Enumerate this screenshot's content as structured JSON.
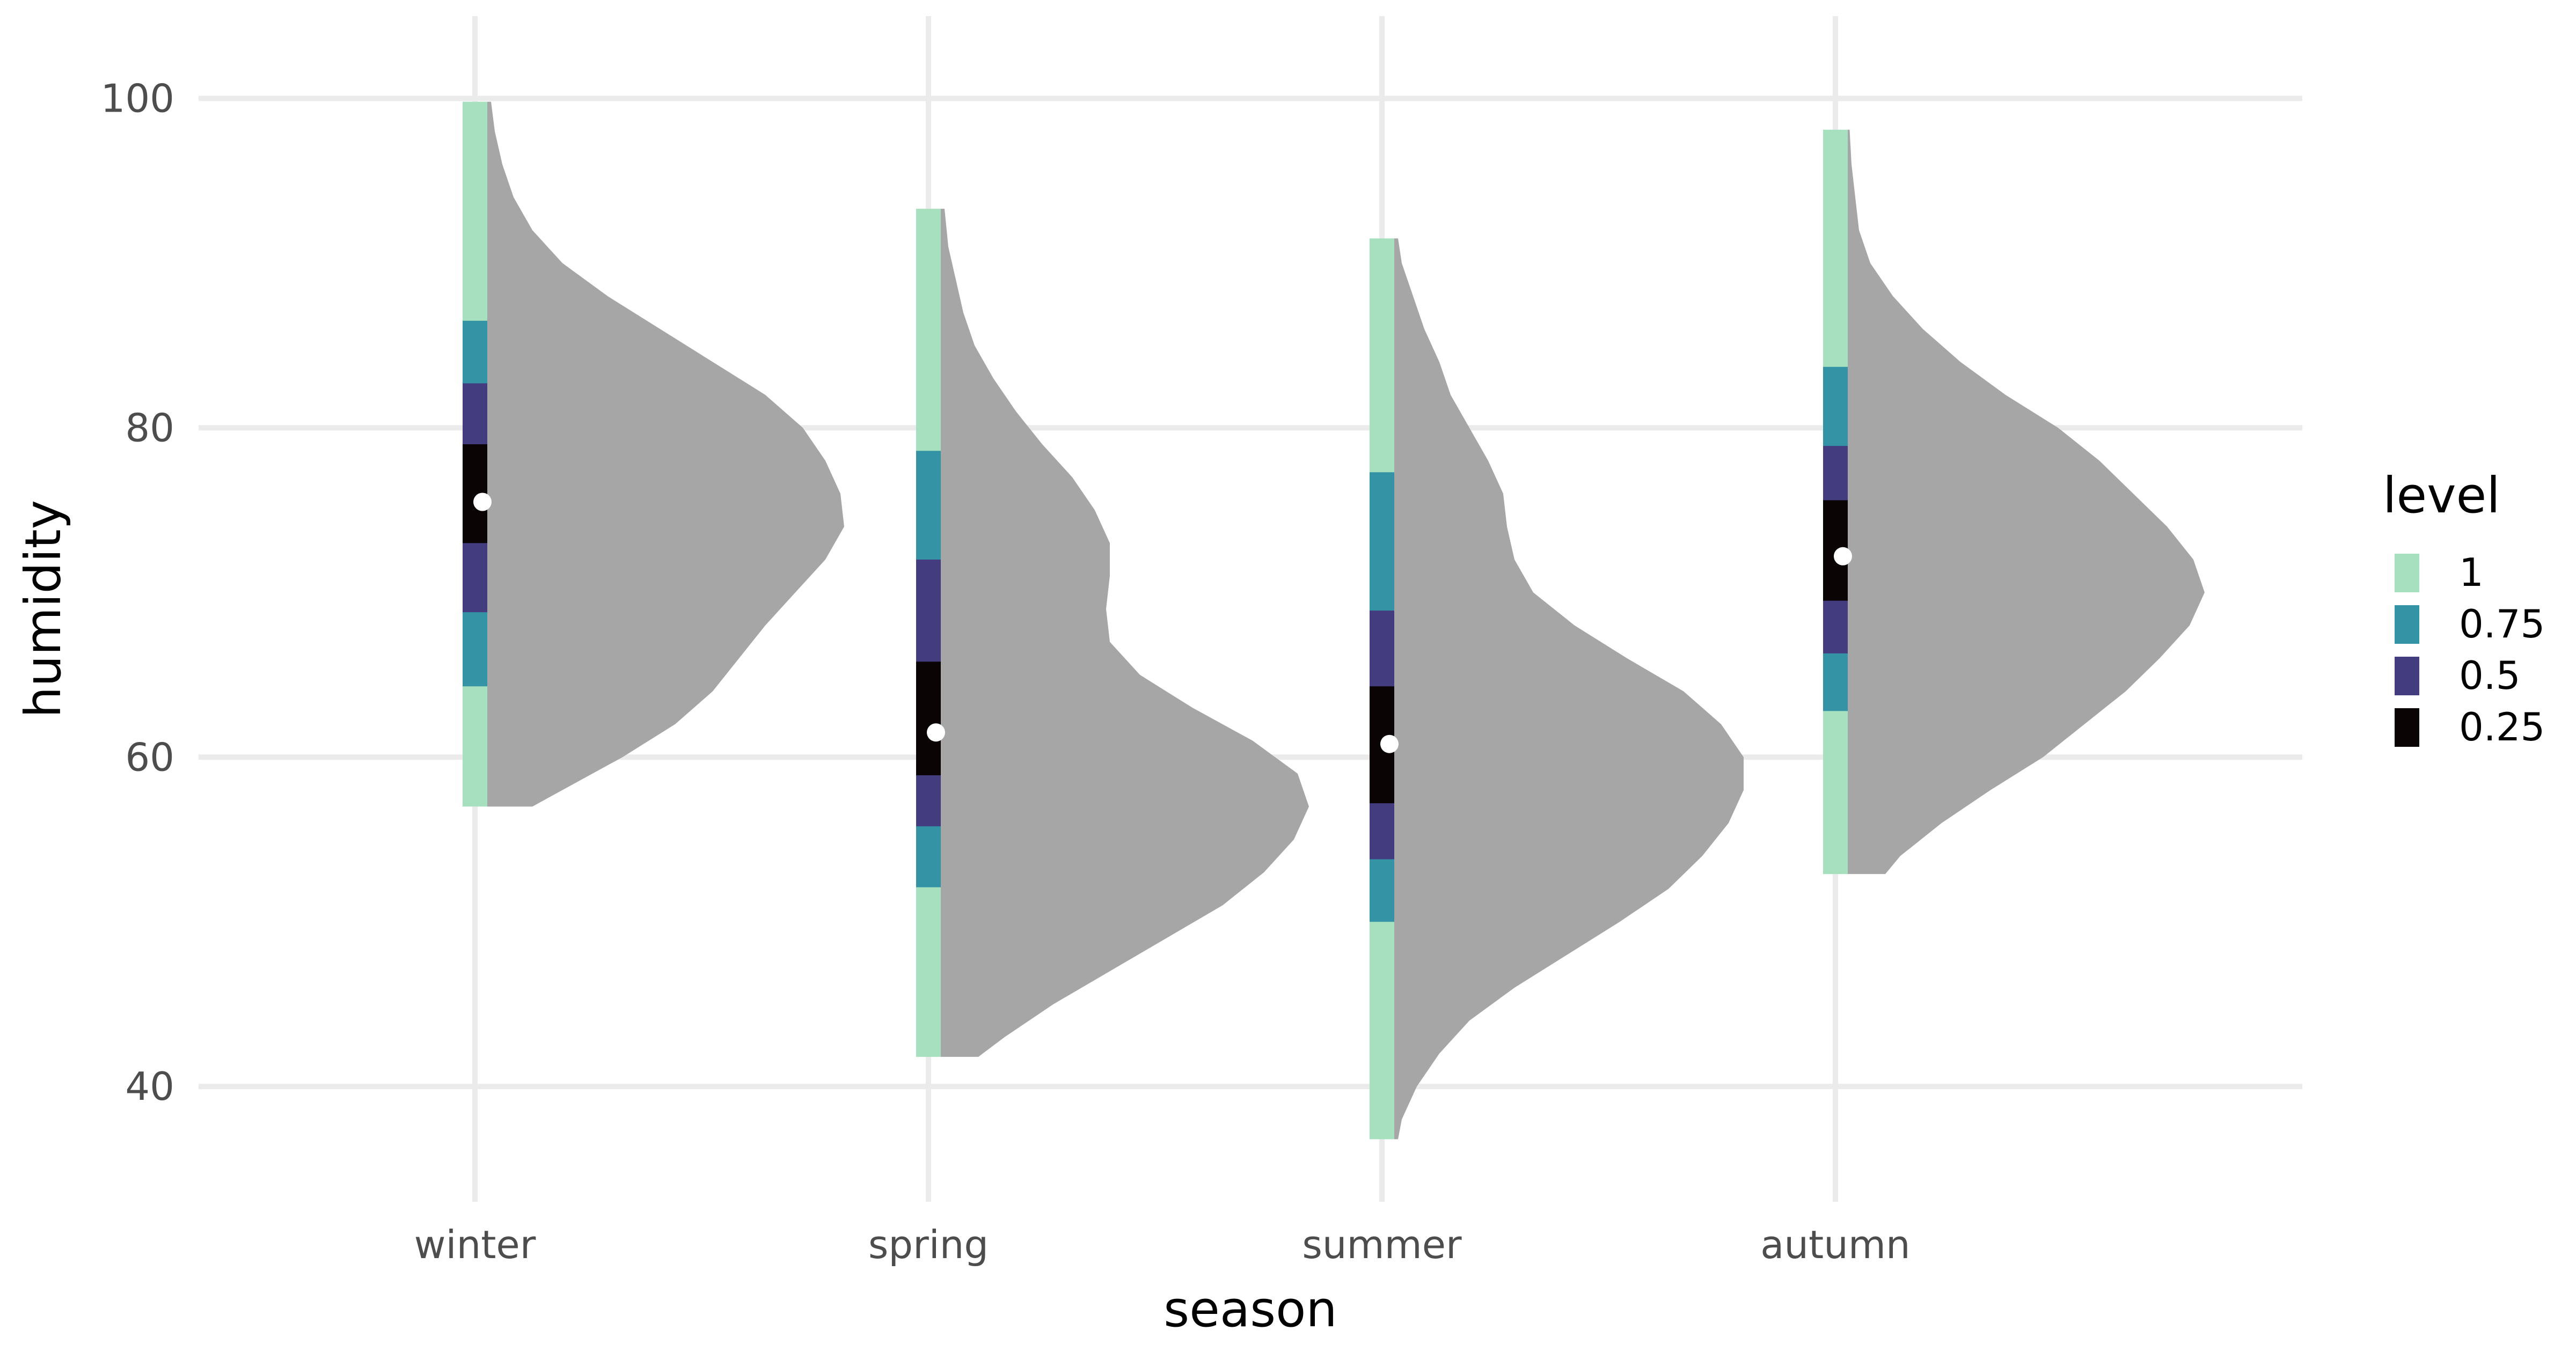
{
  "chart_data": {
    "type": "half-violin-interval",
    "title": "",
    "xlabel": "season",
    "ylabel": "humidity",
    "categories": [
      "winter",
      "spring",
      "summer",
      "autumn"
    ],
    "ylim": [
      33,
      105
    ],
    "yticks": [
      40,
      60,
      80,
      100
    ],
    "grid": true,
    "legend": {
      "title": "level",
      "position": "right",
      "entries": [
        {
          "label": "1",
          "color": "#a7e0be"
        },
        {
          "label": "0.75",
          "color": "#3494a6"
        },
        {
          "label": "0.5",
          "color": "#433d80"
        },
        {
          "label": "0.25",
          "color": "#0b0405"
        }
      ]
    },
    "density_color": "#a6a6a6",
    "point_color": "#ffffff",
    "series": [
      {
        "category": "winter",
        "median": 75.5,
        "intervals": [
          {
            "level": "1",
            "low": 57,
            "high": 99.8
          },
          {
            "level": "0.75",
            "low": 64.3,
            "high": 86.5
          },
          {
            "level": "0.5",
            "low": 68.8,
            "high": 82.7
          },
          {
            "level": "0.25",
            "low": 73.0,
            "high": 79.0
          }
        ],
        "density": [
          [
            57,
            0.12
          ],
          [
            58,
            0.2
          ],
          [
            60,
            0.36
          ],
          [
            62,
            0.5
          ],
          [
            64,
            0.6
          ],
          [
            66,
            0.67
          ],
          [
            68,
            0.74
          ],
          [
            70,
            0.82
          ],
          [
            72,
            0.9
          ],
          [
            74,
            0.95
          ],
          [
            76,
            0.94
          ],
          [
            78,
            0.9
          ],
          [
            80,
            0.84
          ],
          [
            82,
            0.74
          ],
          [
            84,
            0.6
          ],
          [
            86,
            0.46
          ],
          [
            88,
            0.32
          ],
          [
            90,
            0.2
          ],
          [
            92,
            0.12
          ],
          [
            94,
            0.07
          ],
          [
            96,
            0.04
          ],
          [
            98,
            0.02
          ],
          [
            99.8,
            0.01
          ]
        ]
      },
      {
        "category": "spring",
        "median": 61.5,
        "intervals": [
          {
            "level": "1",
            "low": 41.8,
            "high": 93.3
          },
          {
            "level": "0.75",
            "low": 52.1,
            "high": 78.6
          },
          {
            "level": "0.5",
            "low": 55.8,
            "high": 72.0
          },
          {
            "level": "0.25",
            "low": 58.9,
            "high": 65.8
          }
        ],
        "density": [
          [
            41.8,
            0.1
          ],
          [
            43,
            0.17
          ],
          [
            45,
            0.3
          ],
          [
            47,
            0.45
          ],
          [
            49,
            0.6
          ],
          [
            51,
            0.75
          ],
          [
            53,
            0.86
          ],
          [
            55,
            0.94
          ],
          [
            57,
            0.98
          ],
          [
            59,
            0.95
          ],
          [
            61,
            0.83
          ],
          [
            63,
            0.67
          ],
          [
            65,
            0.53
          ],
          [
            67,
            0.45
          ],
          [
            69,
            0.44
          ],
          [
            71,
            0.45
          ],
          [
            73,
            0.45
          ],
          [
            75,
            0.41
          ],
          [
            77,
            0.35
          ],
          [
            79,
            0.27
          ],
          [
            81,
            0.2
          ],
          [
            83,
            0.14
          ],
          [
            85,
            0.09
          ],
          [
            87,
            0.06
          ],
          [
            89,
            0.04
          ],
          [
            91,
            0.02
          ],
          [
            93.3,
            0.01
          ]
        ]
      },
      {
        "category": "summer",
        "median": 60.8,
        "intervals": [
          {
            "level": "1",
            "low": 36.8,
            "high": 91.5
          },
          {
            "level": "0.75",
            "low": 50.0,
            "high": 77.3
          },
          {
            "level": "0.5",
            "low": 53.8,
            "high": 68.9
          },
          {
            "level": "0.25",
            "low": 57.2,
            "high": 64.3
          }
        ],
        "density": [
          [
            36.8,
            0.01
          ],
          [
            38,
            0.02
          ],
          [
            40,
            0.06
          ],
          [
            42,
            0.12
          ],
          [
            44,
            0.2
          ],
          [
            46,
            0.32
          ],
          [
            48,
            0.46
          ],
          [
            50,
            0.6
          ],
          [
            52,
            0.73
          ],
          [
            54,
            0.82
          ],
          [
            56,
            0.89
          ],
          [
            58,
            0.93
          ],
          [
            60,
            0.93
          ],
          [
            62,
            0.87
          ],
          [
            64,
            0.77
          ],
          [
            66,
            0.62
          ],
          [
            68,
            0.48
          ],
          [
            70,
            0.37
          ],
          [
            72,
            0.32
          ],
          [
            74,
            0.3
          ],
          [
            76,
            0.29
          ],
          [
            78,
            0.25
          ],
          [
            80,
            0.2
          ],
          [
            82,
            0.15
          ],
          [
            84,
            0.12
          ],
          [
            86,
            0.08
          ],
          [
            88,
            0.05
          ],
          [
            90,
            0.02
          ],
          [
            91.5,
            0.01
          ]
        ]
      },
      {
        "category": "autumn",
        "median": 72.2,
        "intervals": [
          {
            "level": "1",
            "low": 52.9,
            "high": 98.1
          },
          {
            "level": "0.75",
            "low": 62.8,
            "high": 83.7
          },
          {
            "level": "0.5",
            "low": 66.3,
            "high": 78.9
          },
          {
            "level": "0.25",
            "low": 69.5,
            "high": 75.6
          }
        ],
        "density": [
          [
            52.9,
            0.1
          ],
          [
            54,
            0.14
          ],
          [
            56,
            0.25
          ],
          [
            58,
            0.38
          ],
          [
            60,
            0.52
          ],
          [
            62,
            0.63
          ],
          [
            64,
            0.74
          ],
          [
            66,
            0.83
          ],
          [
            68,
            0.91
          ],
          [
            70,
            0.95
          ],
          [
            72,
            0.92
          ],
          [
            74,
            0.85
          ],
          [
            76,
            0.76
          ],
          [
            78,
            0.67
          ],
          [
            80,
            0.56
          ],
          [
            82,
            0.42
          ],
          [
            84,
            0.3
          ],
          [
            86,
            0.2
          ],
          [
            88,
            0.12
          ],
          [
            90,
            0.06
          ],
          [
            92,
            0.03
          ],
          [
            94,
            0.02
          ],
          [
            96,
            0.01
          ],
          [
            98.1,
            0.005
          ]
        ]
      }
    ]
  }
}
